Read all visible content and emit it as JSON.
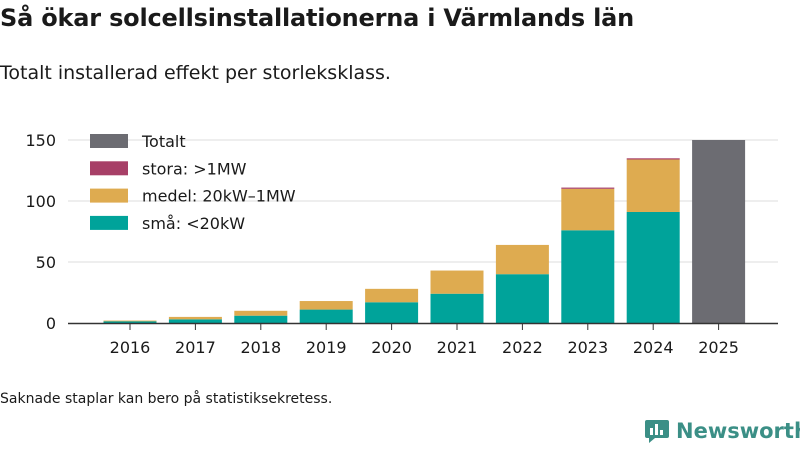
{
  "header": {
    "title": "Så ökar solcellsinstallationerna i Värmlands län",
    "subtitle": "Totalt installerad effekt per storleksklass."
  },
  "footer": {
    "note": "Saknade staplar kan bero på statistiksekretess.",
    "brand": "Newsworthy",
    "brand_color": "#3b8f86"
  },
  "chart_data": {
    "type": "bar",
    "stacked": true,
    "title": "Så ökar solcellsinstallationerna i Värmlands län",
    "subtitle": "Totalt installerad effekt per storleksklass.",
    "xlabel": "",
    "ylabel": "",
    "ylim": [
      0,
      150
    ],
    "yticks": [
      0,
      50,
      100,
      150
    ],
    "grid": true,
    "legend_position": "top-left",
    "categories": [
      "2016",
      "2017",
      "2018",
      "2019",
      "2020",
      "2021",
      "2022",
      "2023",
      "2024",
      "2025"
    ],
    "series": [
      {
        "name": "små: <20kW",
        "color": "#00a39a",
        "values": [
          1.5,
          3,
          6,
          11,
          17,
          24,
          40,
          76,
          91,
          null
        ]
      },
      {
        "name": "medel: 20kW–1MW",
        "color": "#deab50",
        "values": [
          0.5,
          2,
          4,
          7,
          11,
          19,
          24,
          34,
          43,
          null
        ]
      },
      {
        "name": "stora: >1MW",
        "color": "#a73f67",
        "values": [
          0,
          0,
          0,
          0,
          0,
          0,
          0,
          1,
          1,
          null
        ]
      },
      {
        "name": "Totalt",
        "color": "#6c6c72",
        "values": [
          null,
          null,
          null,
          null,
          null,
          null,
          null,
          null,
          null,
          150
        ]
      }
    ],
    "legend_order": [
      "Totalt",
      "stora: >1MW",
      "medel: 20kW–1MW",
      "små: <20kW"
    ]
  }
}
